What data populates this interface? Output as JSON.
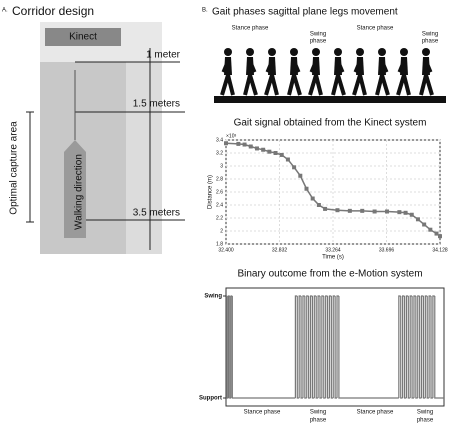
{
  "panel_a": {
    "label": "A.",
    "title": "Corridor design",
    "kinect": "Kinect",
    "distances": [
      "1 meter",
      "1.5 meters",
      "3.5 meters"
    ],
    "side_label": "Optimal capture area",
    "arrow_label": "Walking direction"
  },
  "panel_b": {
    "label": "B.",
    "title": "Gait phases sagittal plane legs movement",
    "phases": [
      "Stance phase",
      "Swing phase",
      "Stance phase",
      "Swing phase"
    ]
  },
  "chart_data": [
    {
      "type": "line",
      "title": "Gait signal obtained from the Kinect system",
      "x_label": "Time (s)",
      "y_label": "Distance (m)",
      "y_multiplier": "×10³",
      "x": [
        32.4,
        32.5,
        32.55,
        32.6,
        32.65,
        32.7,
        32.75,
        32.8,
        32.85,
        32.9,
        32.95,
        33.0,
        33.05,
        33.1,
        33.15,
        33.2,
        33.3,
        33.4,
        33.5,
        33.6,
        33.7,
        33.8,
        33.85,
        33.9,
        33.95,
        34.0,
        34.05,
        34.1,
        34.128
      ],
      "values": [
        3.35,
        3.34,
        3.33,
        3.3,
        3.27,
        3.25,
        3.22,
        3.2,
        3.17,
        3.1,
        2.98,
        2.85,
        2.65,
        2.5,
        2.4,
        2.34,
        2.32,
        2.31,
        2.31,
        2.3,
        2.3,
        2.29,
        2.28,
        2.25,
        2.18,
        2.1,
        2.02,
        1.96,
        1.92
      ],
      "color": "#777777",
      "xlim": [
        32.4,
        34.128
      ],
      "xticks": [
        {
          "value": 32.4,
          "label": "32.400"
        },
        {
          "value": 32.832,
          "label": "32.832"
        },
        {
          "value": 33.264,
          "label": "33.264"
        },
        {
          "value": 33.696,
          "label": "33.696"
        },
        34.128
      ],
      "ylim": [
        1.8,
        3.4
      ],
      "yticks": [
        1.8,
        {
          "value": 2.0,
          "label": "2"
        },
        2.2,
        2.4,
        2.6,
        2.8,
        {
          "value": 3.0,
          "label": "3"
        },
        3.2,
        3.4
      ],
      "grid": true
    },
    {
      "type": "step",
      "title": "Binary outcome from the e-Motion system",
      "x": [
        32.4,
        32.41,
        32.42,
        32.43,
        32.44,
        32.45,
        32.95,
        32.965,
        32.98,
        32.995,
        33.01,
        33.025,
        33.04,
        33.055,
        33.07,
        33.085,
        33.1,
        33.115,
        33.13,
        33.145,
        33.16,
        33.175,
        33.19,
        33.205,
        33.22,
        33.235,
        33.25,
        33.265,
        33.28,
        33.295,
        33.77,
        33.785,
        33.8,
        33.815,
        33.83,
        33.845,
        33.86,
        33.875,
        33.89,
        33.905,
        33.92,
        33.935,
        33.95,
        33.965,
        33.98,
        33.995,
        34.01,
        34.025,
        34.04,
        34.055
      ],
      "values": [
        1,
        0,
        1,
        0,
        1,
        0,
        1,
        0,
        1,
        0,
        1,
        0,
        1,
        0,
        1,
        0,
        1,
        0,
        1,
        0,
        1,
        0,
        1,
        0,
        1,
        0,
        1,
        0,
        1,
        0,
        1,
        0,
        1,
        0,
        1,
        0,
        1,
        0,
        1,
        0,
        1,
        0,
        1,
        0,
        1,
        0,
        1,
        0,
        1,
        0
      ],
      "color": "#777777",
      "xlim": [
        32.4,
        34.128
      ],
      "ylim": [
        0,
        1
      ],
      "yticks": [
        {
          "value": 0,
          "label": "Support"
        },
        {
          "value": 1,
          "label": "Swing"
        }
      ],
      "phases": [
        "Stance phase",
        "Swing phase",
        "Stance phase",
        "Swing phase"
      ]
    }
  ]
}
